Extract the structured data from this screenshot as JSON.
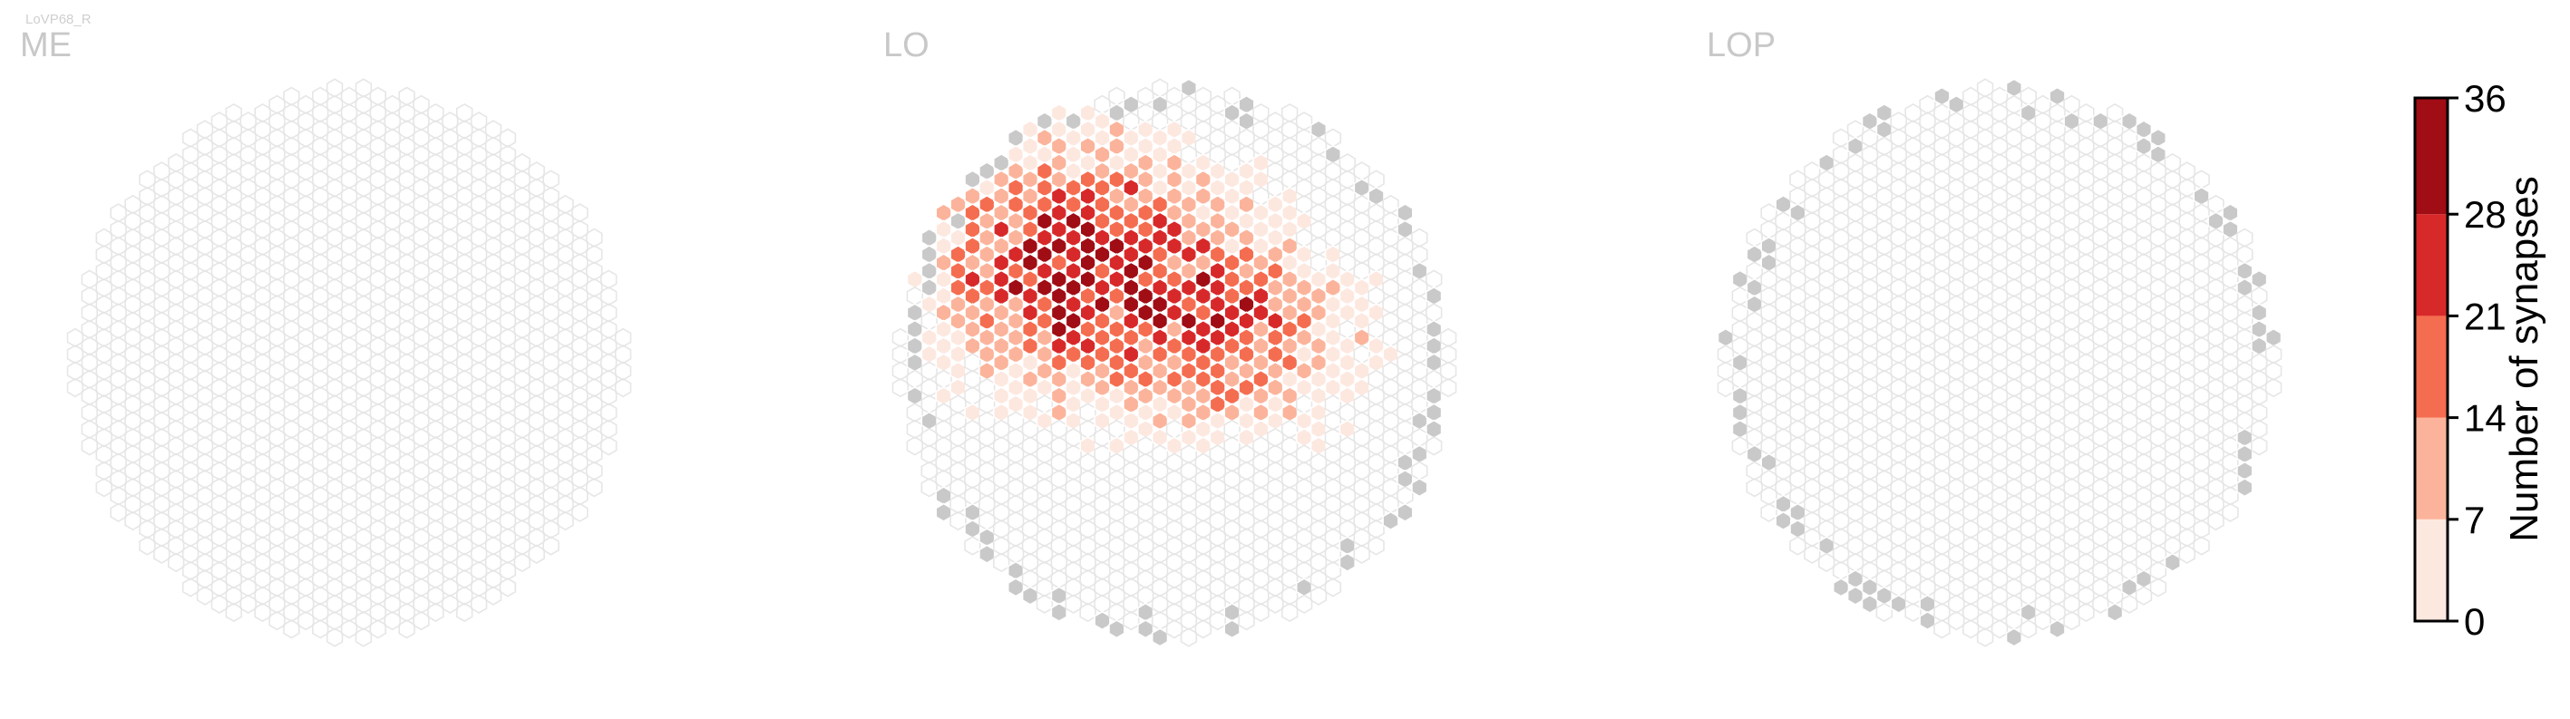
{
  "cell_label": "LoVP68_R",
  "colors": {
    "empty_outline": "#e6e6e6",
    "missing_fill": "#c9c9c9",
    "bins": [
      "#fde8e0",
      "#fbb49b",
      "#f56d50",
      "#d8292a",
      "#a00d15"
    ]
  },
  "chart_data": {
    "type": "heatmap",
    "description_free": true,
    "panels": [
      {
        "id": "me",
        "title": "ME",
        "cells": []
      },
      {
        "id": "lo",
        "title": "LO",
        "cells": []
      },
      {
        "id": "lop",
        "title": "LOP",
        "cells": []
      }
    ],
    "colorbar": {
      "label": "Number of synapses",
      "ticks": [
        0,
        7,
        14,
        21,
        28,
        36
      ],
      "range": [
        0,
        36
      ]
    }
  }
}
